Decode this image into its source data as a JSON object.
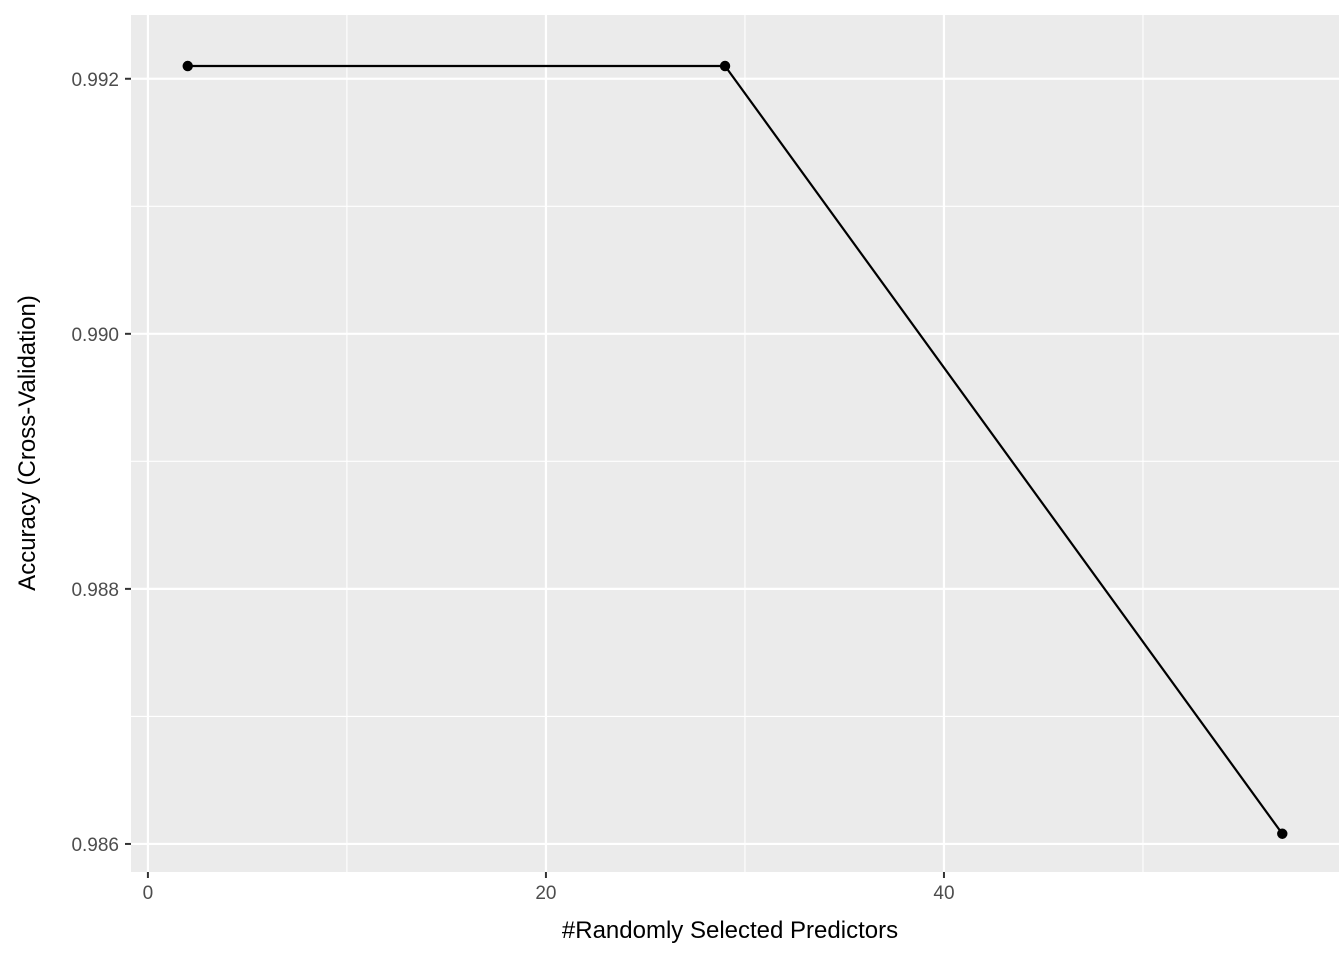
{
  "chart_data": {
    "type": "line",
    "title": "",
    "xlabel": "#Randomly Selected Predictors",
    "ylabel": "Accuracy (Cross-Validation)",
    "x": [
      2,
      29,
      57
    ],
    "series": [
      {
        "values": [
          0.9921,
          0.9921,
          0.98608
        ]
      }
    ],
    "xlim": [
      -0.85,
      59.85
    ],
    "ylim": [
      0.98578,
      0.9925
    ],
    "x_ticks": [
      0,
      20,
      40
    ],
    "x_tick_labels": [
      "0",
      "20",
      "40"
    ],
    "x_minor_ticks": [
      10,
      30,
      50
    ],
    "y_ticks": [
      0.986,
      0.988,
      0.99,
      0.992
    ],
    "y_tick_labels": [
      "0.986",
      "0.988",
      "0.990",
      "0.992"
    ],
    "y_minor_ticks": [
      0.987,
      0.989,
      0.991
    ],
    "grid": true,
    "legend": "none",
    "colors": {
      "panel_background": "#ebebeb",
      "grid": "#ffffff",
      "line": "#000000",
      "point": "#000000",
      "tick_text": "#4d4d4d",
      "axis_title": "#000000"
    }
  }
}
